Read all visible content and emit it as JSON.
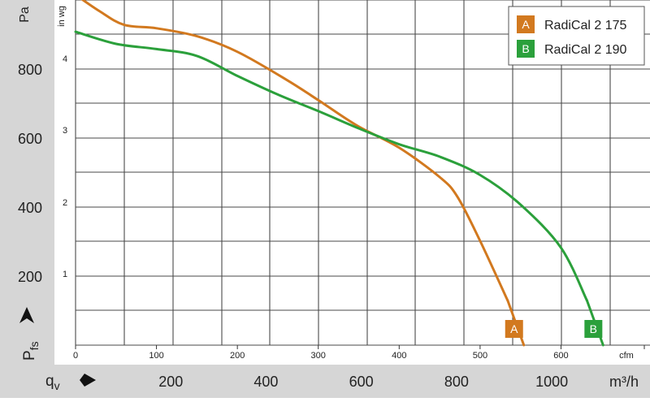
{
  "chart_data": {
    "type": "line",
    "left_axis": {
      "unit": "Pa",
      "ticks": [
        200,
        400,
        600,
        800
      ],
      "label_main": "P",
      "label_sub": "fs",
      "range": [
        0,
        1000
      ]
    },
    "inner_axis": {
      "unit": "in wg",
      "ticks": [
        1,
        2,
        3,
        4
      ]
    },
    "top_axis": {
      "unit": "cfm",
      "ticks": [
        0,
        100,
        200,
        300,
        400,
        500,
        600
      ],
      "range": [
        0,
        710
      ]
    },
    "bottom_axis": {
      "unit": "m³/h",
      "ticks": [
        200,
        400,
        600,
        800,
        1000
      ],
      "label_main": "q",
      "label_sub": "v",
      "range": [
        0,
        1206
      ]
    },
    "series": [
      {
        "name": "RadiCal 2 175",
        "badge": "A",
        "color": "#d2791f",
        "x_cfm": [
          0,
          30,
          60,
          100,
          150,
          200,
          260,
          300,
          348,
          400,
          450,
          472,
          500,
          534
        ],
        "y_pa": [
          1015,
          967,
          928,
          918,
          895,
          850,
          770,
          710,
          636,
          572,
          487,
          430,
          302,
          130
        ]
      },
      {
        "name": "RadiCal 2 190",
        "badge": "B",
        "color": "#2ba03b",
        "x_cfm": [
          0,
          50,
          100,
          150,
          200,
          250,
          300,
          348,
          400,
          450,
          500,
          550,
          600,
          632
        ],
        "y_pa": [
          908,
          873,
          858,
          838,
          780,
          726,
          678,
          630,
          582,
          546,
          493,
          407,
          282,
          130
        ]
      }
    ]
  }
}
